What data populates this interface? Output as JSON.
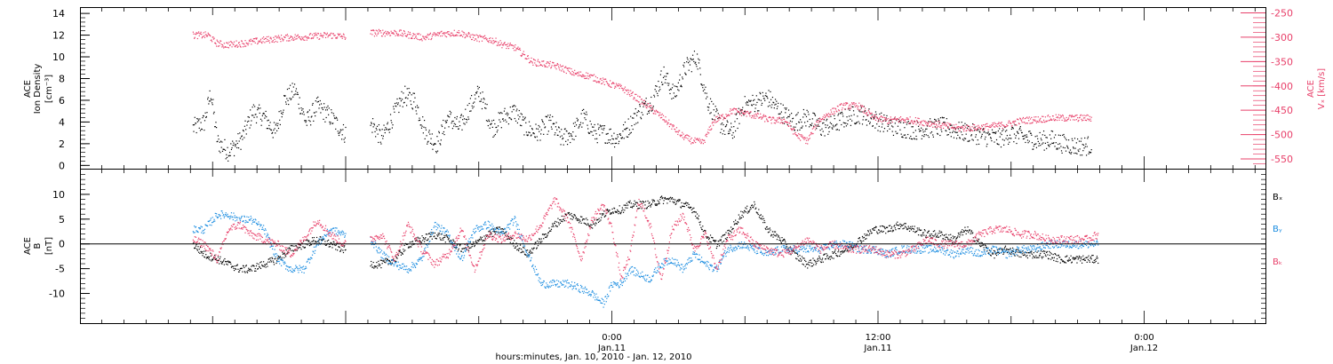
{
  "chart_data": [
    {
      "type": "scatter",
      "panel": "top",
      "ylabel_left": [
        "ACE",
        "Ion Density",
        "[cm⁻³]"
      ],
      "ylabel_right": [
        "ACE",
        "Vₓ [km/s]"
      ],
      "ylim_left": [
        -0.3,
        14.5
      ],
      "ylim_right": [
        -570,
        -240
      ],
      "yticks_left": [
        "0",
        "2",
        "4",
        "6",
        "8",
        "10",
        "12",
        "14"
      ],
      "yticks_right": [
        "-250",
        "-300",
        "-350",
        "-400",
        "-450",
        "-500",
        "-550"
      ],
      "x_unit": "hours since Jan. 10, 2010 00:00",
      "xlim": [
        5,
        50
      ],
      "data_gap_hours": [
        12,
        13.1
      ],
      "series": [
        {
          "color": "#000000",
          "axis": "left",
          "x": [
            5.1,
            5.6,
            5.9,
            6.2,
            6.7,
            7.3,
            7.8,
            8.3,
            8.8,
            9.2,
            9.7,
            10.2,
            10.7,
            11.3,
            11.9,
            13.2,
            13.6,
            14.1,
            14.6,
            15.1,
            15.6,
            16.1,
            16.6,
            17.1,
            17.6,
            18.0,
            18.6,
            19.1,
            19.6,
            20.1,
            20.6,
            21.2,
            21.7,
            22.2,
            22.7,
            23.2,
            23.7,
            24.2,
            24.7,
            25.2,
            25.8,
            26.3,
            26.8,
            27.3,
            27.8,
            28.3,
            28.8,
            29.4,
            29.9,
            30.4,
            31.0,
            31.6,
            32.2,
            32.8,
            33.4,
            34.0,
            34.6,
            35.2,
            35.8,
            36.4,
            37.0,
            37.7,
            38.4,
            39.0,
            39.6,
            40.2,
            40.8,
            41.4,
            42.0,
            42.6,
            43.2,
            43.8,
            44.4,
            45.0,
            45.6
          ],
          "y": [
            3.5,
            4.0,
            6.8,
            2.2,
            1.3,
            2.5,
            5.0,
            4.5,
            3.0,
            6.0,
            7.0,
            4.0,
            5.5,
            4.5,
            3.0,
            3.8,
            2.5,
            4.5,
            6.5,
            6.0,
            3.0,
            2.0,
            4.5,
            3.5,
            5.5,
            6.8,
            3.5,
            4.5,
            5.0,
            3.5,
            3.0,
            4.0,
            2.5,
            3.0,
            4.5,
            3.0,
            3.0,
            2.5,
            3.5,
            5.0,
            6.0,
            8.5,
            6.5,
            9.0,
            10.0,
            6.0,
            4.0,
            3.0,
            5.5,
            5.8,
            6.3,
            5.0,
            4.0,
            4.5,
            3.5,
            3.8,
            4.5,
            4.8,
            4.3,
            3.8,
            3.5,
            3.3,
            3.5,
            3.6,
            3.2,
            3.0,
            2.7,
            2.5,
            3.0,
            2.6,
            2.3,
            2.4,
            2.0,
            1.8,
            1.9
          ]
        },
        {
          "color": "#e8406a",
          "axis": "right",
          "x": [
            5.1,
            5.8,
            6.1,
            6.5,
            7.3,
            8.3,
            9.3,
            10.3,
            11.3,
            11.9,
            13.2,
            14.3,
            15.5,
            16.3,
            17.1,
            17.8,
            18.6,
            19.1,
            19.6,
            20.4,
            21.1,
            21.6,
            22.4,
            22.9,
            23.9,
            24.5,
            25.3,
            26.3,
            27.1,
            27.6,
            28.1,
            28.6,
            29.1,
            29.4,
            30.0,
            30.6,
            31.2,
            31.8,
            32.3,
            32.8,
            33.3,
            33.8,
            34.4,
            35.1,
            35.8,
            36.4,
            37.0,
            37.6,
            38.2,
            38.9,
            39.6,
            40.3,
            41.1,
            41.8,
            42.5,
            43.2,
            43.9,
            44.6,
            45.6
          ],
          "y": [
            -295,
            -295,
            -310,
            -315,
            -312,
            -305,
            -300,
            -298,
            -295,
            -298,
            -290,
            -290,
            -300,
            -292,
            -290,
            -300,
            -305,
            -315,
            -320,
            -350,
            -355,
            -360,
            -375,
            -378,
            -395,
            -405,
            -430,
            -465,
            -500,
            -512,
            -515,
            -470,
            -460,
            -450,
            -455,
            -462,
            -470,
            -470,
            -500,
            -512,
            -470,
            -455,
            -440,
            -440,
            -465,
            -470,
            -468,
            -470,
            -475,
            -480,
            -486,
            -485,
            -482,
            -478,
            -470,
            -468,
            -465,
            -465,
            -465
          ]
        }
      ]
    },
    {
      "type": "scatter",
      "panel": "bottom",
      "ylabel_left": [
        "ACE",
        "B",
        "[nT]"
      ],
      "ylim": [
        -16,
        15
      ],
      "yticks": [
        "10",
        "5",
        "0",
        "-5",
        "-10"
      ],
      "zero_line": true,
      "x_unit": "hours since Jan. 10, 2010 00:00",
      "xlim": [
        5,
        50
      ],
      "xtick_labels": [
        {
          "x": 24,
          "time": "0:00",
          "date": "Jan.11"
        },
        {
          "x": 36,
          "time": "12:00",
          "date": "Jan.11"
        },
        {
          "x": 48,
          "time": "0:00",
          "date": "Jan.12"
        },
        {
          "x": 60,
          "time": "12:00",
          "date": "Jan.12"
        }
      ],
      "xlabel": "hours:minutes, Jan. 10, 2010 - Jan. 12, 2010",
      "series": [
        {
          "name": "Bₓ",
          "color": "#000000",
          "x": [
            5.1,
            5.6,
            6.2,
            6.7,
            7.2,
            7.7,
            8.3,
            8.9,
            9.5,
            10.1,
            10.7,
            11.3,
            11.9,
            13.1,
            13.6,
            14.2,
            14.8,
            15.4,
            16.0,
            16.6,
            17.2,
            17.8,
            18.4,
            19.0,
            19.6,
            20.2,
            20.8,
            21.4,
            22.0,
            22.6,
            23.1,
            23.6,
            24.0,
            24.4,
            24.8,
            25.2,
            25.7,
            26.2,
            26.7,
            27.2,
            27.7,
            28.2,
            28.7,
            29.2,
            29.8,
            30.4,
            31.0,
            31.6,
            32.2,
            32.8,
            33.4,
            34.0,
            34.6,
            35.2,
            35.8,
            36.4,
            37.0,
            37.6,
            38.2,
            38.8,
            39.4,
            40.0,
            40.6,
            41.2,
            41.8,
            42.4,
            43.0,
            43.6,
            44.2,
            44.8,
            45.4,
            45.9
          ],
          "y": [
            0,
            -2,
            -3,
            -4,
            -5,
            -5,
            -4,
            -3,
            -1,
            0,
            1,
            0,
            -1,
            -4,
            -4,
            -3,
            0,
            1,
            2,
            1,
            -1,
            0,
            2,
            3,
            0,
            -2,
            1,
            4,
            6,
            5,
            4,
            6,
            7,
            7,
            8,
            8,
            8,
            9,
            9,
            8,
            7,
            2,
            0,
            2,
            6,
            8,
            3,
            1,
            -2,
            -4,
            -3,
            -2,
            -1,
            1,
            3,
            3,
            4,
            3,
            2,
            2,
            1,
            3,
            0,
            -2,
            -1,
            -2,
            -2,
            -2,
            -3,
            -3,
            -3,
            -3
          ]
        },
        {
          "name": "Bᵧ",
          "color": "#1a8ce0",
          "x": [
            5.1,
            5.6,
            6.2,
            6.7,
            7.2,
            7.7,
            8.3,
            8.9,
            9.5,
            10.1,
            10.7,
            11.3,
            11.9,
            13.1,
            13.6,
            14.2,
            14.8,
            15.4,
            16.0,
            16.6,
            17.2,
            17.8,
            18.4,
            19.0,
            19.6,
            20.2,
            20.8,
            21.4,
            22.0,
            22.6,
            23.1,
            23.6,
            24.0,
            24.4,
            24.8,
            25.2,
            25.7,
            26.2,
            26.7,
            27.2,
            27.7,
            28.2,
            28.7,
            29.2,
            29.8,
            30.4,
            31.0,
            31.6,
            32.2,
            32.8,
            33.4,
            34.0,
            34.6,
            35.2,
            35.8,
            36.4,
            37.0,
            37.6,
            38.2,
            38.8,
            39.4,
            40.0,
            40.6,
            41.2,
            41.8,
            42.4,
            43.0,
            43.6,
            44.2,
            44.8,
            45.4,
            45.9
          ],
          "y": [
            3,
            3,
            6,
            6,
            5,
            5,
            3,
            -3,
            -5,
            -5,
            0,
            3,
            2,
            1,
            -2,
            -4,
            -5,
            -3,
            4,
            2,
            -3,
            3,
            4,
            2,
            5,
            -2,
            -8,
            -8,
            -8,
            -9,
            -10,
            -12,
            -8,
            -8,
            -5,
            -6,
            -7,
            -4,
            -3,
            -5,
            -2,
            -4,
            -5,
            -1,
            0,
            -1,
            -2,
            -1,
            -1,
            -1,
            -1,
            0,
            0,
            -1,
            -1,
            -2,
            -1,
            -1,
            -1,
            -1,
            -2,
            -1,
            -2,
            -1,
            -2,
            -1,
            -1,
            0,
            0,
            0,
            0,
            0
          ]
        },
        {
          "name": "Bₖ",
          "color": "#e8406a",
          "x": [
            5.1,
            5.6,
            6.2,
            6.7,
            7.2,
            7.7,
            8.3,
            8.9,
            9.5,
            10.1,
            10.7,
            11.3,
            11.9,
            13.1,
            13.6,
            14.2,
            14.8,
            15.4,
            16.0,
            16.6,
            17.2,
            17.8,
            18.4,
            19.0,
            19.6,
            20.2,
            20.8,
            21.4,
            22.0,
            22.6,
            23.1,
            23.6,
            24.0,
            24.4,
            24.8,
            25.2,
            25.7,
            26.2,
            26.7,
            27.2,
            27.7,
            28.2,
            28.7,
            29.2,
            29.8,
            30.4,
            31.0,
            31.6,
            32.2,
            32.8,
            33.4,
            34.0,
            34.6,
            35.2,
            35.8,
            36.4,
            37.0,
            37.6,
            38.2,
            38.8,
            39.4,
            40.0,
            40.6,
            41.2,
            41.8,
            42.4,
            43.0,
            43.6,
            44.2,
            44.8,
            45.4,
            45.9
          ],
          "y": [
            1,
            0,
            -3,
            3,
            4,
            2,
            1,
            0,
            -2,
            1,
            5,
            2,
            0,
            1,
            2,
            -3,
            4,
            -1,
            -4,
            -2,
            3,
            -5,
            2,
            1,
            2,
            1,
            4,
            9,
            5,
            -3,
            5,
            8,
            3,
            -7,
            -2,
            9,
            4,
            -7,
            3,
            6,
            -1,
            2,
            -5,
            1,
            3,
            0,
            -1,
            -2,
            -1,
            1,
            -1,
            0,
            -1,
            -1,
            -1,
            -2,
            -2,
            -1,
            1,
            0,
            0,
            0,
            2,
            3,
            3,
            2,
            2,
            1,
            1,
            1,
            1,
            2
          ]
        }
      ]
    }
  ]
}
